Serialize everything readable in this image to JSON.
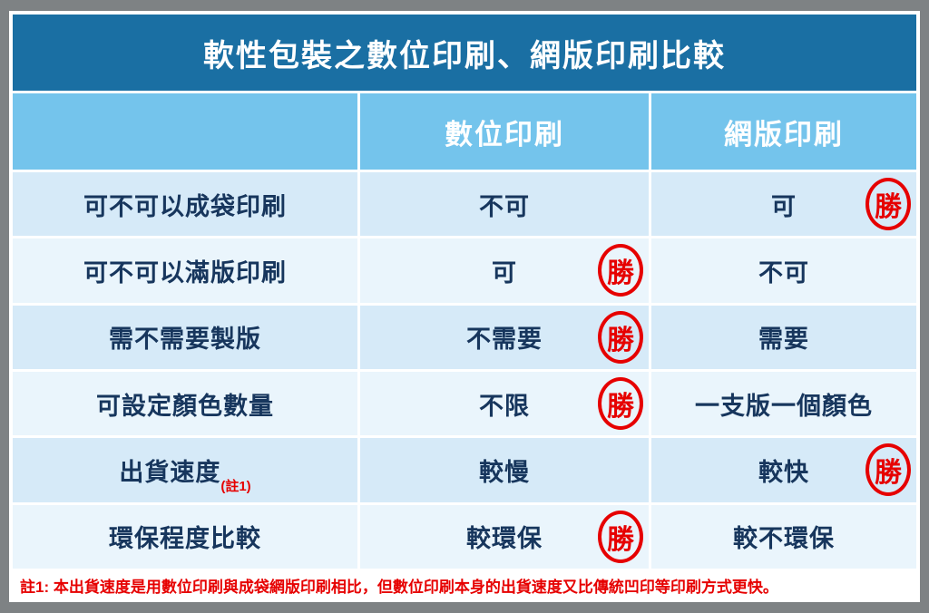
{
  "title": "軟性包裝之數位印刷、網版印刷比較",
  "columns": [
    "",
    "數位印刷",
    "網版印刷"
  ],
  "rows": [
    {
      "label": "可不可以成袋印刷",
      "label_note": "",
      "digital": "不可",
      "screen": "可",
      "winner": "screen"
    },
    {
      "label": "可不可以滿版印刷",
      "label_note": "",
      "digital": "可",
      "screen": "不可",
      "winner": "digital"
    },
    {
      "label": "需不需要製版",
      "label_note": "",
      "digital": "不需要",
      "screen": "需要",
      "winner": "digital"
    },
    {
      "label": "可設定顏色數量",
      "label_note": "",
      "digital": "不限",
      "screen": "一支版一個顏色",
      "winner": "digital"
    },
    {
      "label": "出貨速度",
      "label_note": "(註1)",
      "digital": "較慢",
      "screen": "較快",
      "winner": "screen"
    },
    {
      "label": "環保程度比較",
      "label_note": "",
      "digital": "較環保",
      "screen": "較不環保",
      "winner": "digital"
    }
  ],
  "badge_label": "勝",
  "footnote": "註1: 本出貨速度是用數位印刷與成袋網版印刷相比，但數位印刷本身的出貨速度又比傳統凹印等印刷方式更快。",
  "colors": {
    "title_bar": "#1A6FA3",
    "header_row": "#74C4EC",
    "row_odd": "#D6EAF8",
    "row_even": "#EAF5FC",
    "cell_text": "#17365D",
    "accent_red": "#E60000",
    "outer_background": "#7E8284"
  }
}
